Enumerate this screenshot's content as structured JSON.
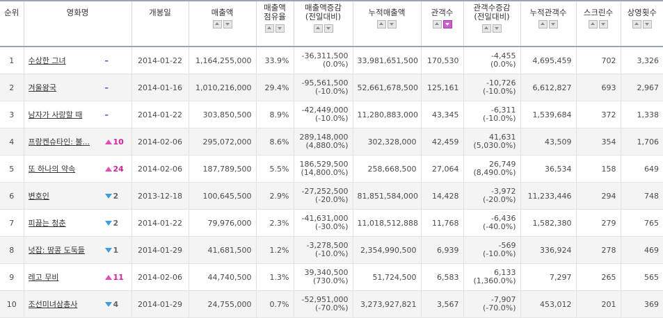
{
  "columns": [
    {
      "label": "순위",
      "sort": false
    },
    {
      "label": "영화명",
      "sort": false
    },
    {
      "label": "개봉일",
      "sort": false
    },
    {
      "label": "매출액",
      "sort": true
    },
    {
      "label": "매출액\n점유율",
      "sort": true
    },
    {
      "label": "매출액증감\n(전일대비)",
      "sort": true
    },
    {
      "label": "누적매출액",
      "sort": true
    },
    {
      "label": "관객수",
      "sort": true,
      "active": "down"
    },
    {
      "label": "관객수증감\n(전일대비)",
      "sort": true
    },
    {
      "label": "누적관객수",
      "sort": true
    },
    {
      "label": "스크린수",
      "sort": true
    },
    {
      "label": "상영횟수",
      "sort": true
    }
  ],
  "rows": [
    {
      "rank": "1",
      "title": "수상한 그녀",
      "change_type": "same",
      "change": "",
      "date": "2014-01-22",
      "sales": "1,164,255,000",
      "share": "33.9%",
      "sales_change": "-36,311,500",
      "sales_change_pct": "(0.0%)",
      "cum_sales": "33,981,651,500",
      "audience": "170,530",
      "aud_change": "-4,455",
      "aud_change_pct": "(0.0%)",
      "cum_audience": "4,695,459",
      "screens": "702",
      "shows": "3,326"
    },
    {
      "rank": "2",
      "title": "겨울왕국",
      "change_type": "same",
      "change": "",
      "date": "2014-01-16",
      "sales": "1,010,216,000",
      "share": "29.4%",
      "sales_change": "-95,561,500",
      "sales_change_pct": "(-10.0%)",
      "cum_sales": "52,661,678,500",
      "audience": "125,161",
      "aud_change": "-10,726",
      "aud_change_pct": "(-10.0%)",
      "cum_audience": "6,612,827",
      "screens": "693",
      "shows": "2,967"
    },
    {
      "rank": "3",
      "title": "남자가 사랑할 때",
      "change_type": "same",
      "change": "",
      "date": "2014-01-22",
      "sales": "303,850,500",
      "share": "8.9%",
      "sales_change": "-42,449,000",
      "sales_change_pct": "(-10.0%)",
      "cum_sales": "11,280,883,000",
      "audience": "43,345",
      "aud_change": "-6,311",
      "aud_change_pct": "(-10.0%)",
      "cum_audience": "1,539,684",
      "screens": "372",
      "shows": "1,338"
    },
    {
      "rank": "4",
      "title": "프랑켄슈타인: 불...",
      "change_type": "up",
      "change": "10",
      "date": "2014-02-06",
      "sales": "295,072,000",
      "share": "8.6%",
      "sales_change": "289,148,000",
      "sales_change_pct": "(4,880.0%)",
      "cum_sales": "302,328,000",
      "audience": "42,459",
      "aud_change": "41,631",
      "aud_change_pct": "(5,030.0%)",
      "cum_audience": "43,509",
      "screens": "354",
      "shows": "1,706"
    },
    {
      "rank": "5",
      "title": "또 하나의 약속",
      "change_type": "up",
      "change": "24",
      "date": "2014-02-06",
      "sales": "187,789,500",
      "share": "5.5%",
      "sales_change": "186,529,500",
      "sales_change_pct": "(14,800.0%)",
      "cum_sales": "258,668,500",
      "audience": "27,064",
      "aud_change": "26,749",
      "aud_change_pct": "(8,490.0%)",
      "cum_audience": "36,534",
      "screens": "158",
      "shows": "649"
    },
    {
      "rank": "6",
      "title": "변호인",
      "change_type": "down",
      "change": "2",
      "date": "2013-12-18",
      "sales": "100,645,500",
      "share": "2.9%",
      "sales_change": "-27,252,500",
      "sales_change_pct": "(-20.0%)",
      "cum_sales": "81,851,584,000",
      "audience": "14,428",
      "aud_change": "-3,972",
      "aud_change_pct": "(-20.0%)",
      "cum_audience": "11,233,446",
      "screens": "294",
      "shows": "748"
    },
    {
      "rank": "7",
      "title": "피끓는 청춘",
      "change_type": "down",
      "change": "2",
      "date": "2014-01-22",
      "sales": "79,976,000",
      "share": "2.3%",
      "sales_change": "-41,631,000",
      "sales_change_pct": "(-30.0%)",
      "cum_sales": "11,018,512,888",
      "audience": "11,768",
      "aud_change": "-6,436",
      "aud_change_pct": "(-40.0%)",
      "cum_audience": "1,582,380",
      "screens": "279",
      "shows": "765"
    },
    {
      "rank": "8",
      "title": "넛잡: 땅콩 도둑들",
      "change_type": "down",
      "change": "1",
      "date": "2014-01-29",
      "sales": "41,681,500",
      "share": "1.2%",
      "sales_change": "-3,278,500",
      "sales_change_pct": "(-10.0%)",
      "cum_sales": "2,354,990,500",
      "audience": "6,939",
      "aud_change": "-569",
      "aud_change_pct": "(-10.0%)",
      "cum_audience": "336,924",
      "screens": "278",
      "shows": "469"
    },
    {
      "rank": "9",
      "title": "레고 무비",
      "change_type": "up",
      "change": "11",
      "date": "2014-02-06",
      "sales": "44,740,500",
      "share": "1.3%",
      "sales_change": "39,340,500",
      "sales_change_pct": "(730.0%)",
      "cum_sales": "51,724,500",
      "audience": "6,583",
      "aud_change": "6,133",
      "aud_change_pct": "(1,360.0%)",
      "cum_audience": "7,297",
      "screens": "265",
      "shows": "565"
    },
    {
      "rank": "10",
      "title": "조선미녀삼총사",
      "change_type": "down",
      "change": "4",
      "date": "2014-01-29",
      "sales": "24,755,000",
      "share": "0.7%",
      "sales_change": "-52,951,000",
      "sales_change_pct": "(-70.0%)",
      "cum_sales": "3,273,927,821",
      "audience": "3,567",
      "aud_change": "-7,907",
      "aud_change_pct": "(-70.0%)",
      "cum_audience": "453,012",
      "screens": "201",
      "shows": "369"
    }
  ]
}
